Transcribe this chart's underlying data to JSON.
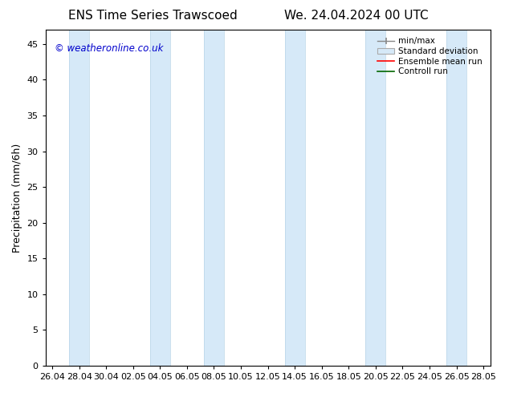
{
  "title_left": "ENS Time Series Trawscoed",
  "title_right": "We. 24.04.2024 00 UTC",
  "ylabel": "Precipitation (mm/6h)",
  "copyright_text": "© weatheronline.co.uk",
  "copyright_color": "#0000cc",
  "ylim": [
    0,
    47
  ],
  "yticks": [
    0,
    5,
    10,
    15,
    20,
    25,
    30,
    35,
    40,
    45
  ],
  "background_color": "#ffffff",
  "plot_bg_color": "#ffffff",
  "legend_labels": [
    "min/max",
    "Standard deviation",
    "Ensemble mean run",
    "Controll run"
  ],
  "shade_color": "#d6e9f8",
  "shade_edge_color": "#b8d4e8",
  "tick_label_fontsize": 8,
  "title_fontsize": 11,
  "xtick_labels": [
    "26.04",
    "28.04",
    "30.04",
    "02.05",
    "04.05",
    "06.05",
    "08.05",
    "10.05",
    "12.05",
    "14.05",
    "16.05",
    "18.05",
    "20.05",
    "22.05",
    "24.05",
    "26.05",
    "28.05"
  ]
}
